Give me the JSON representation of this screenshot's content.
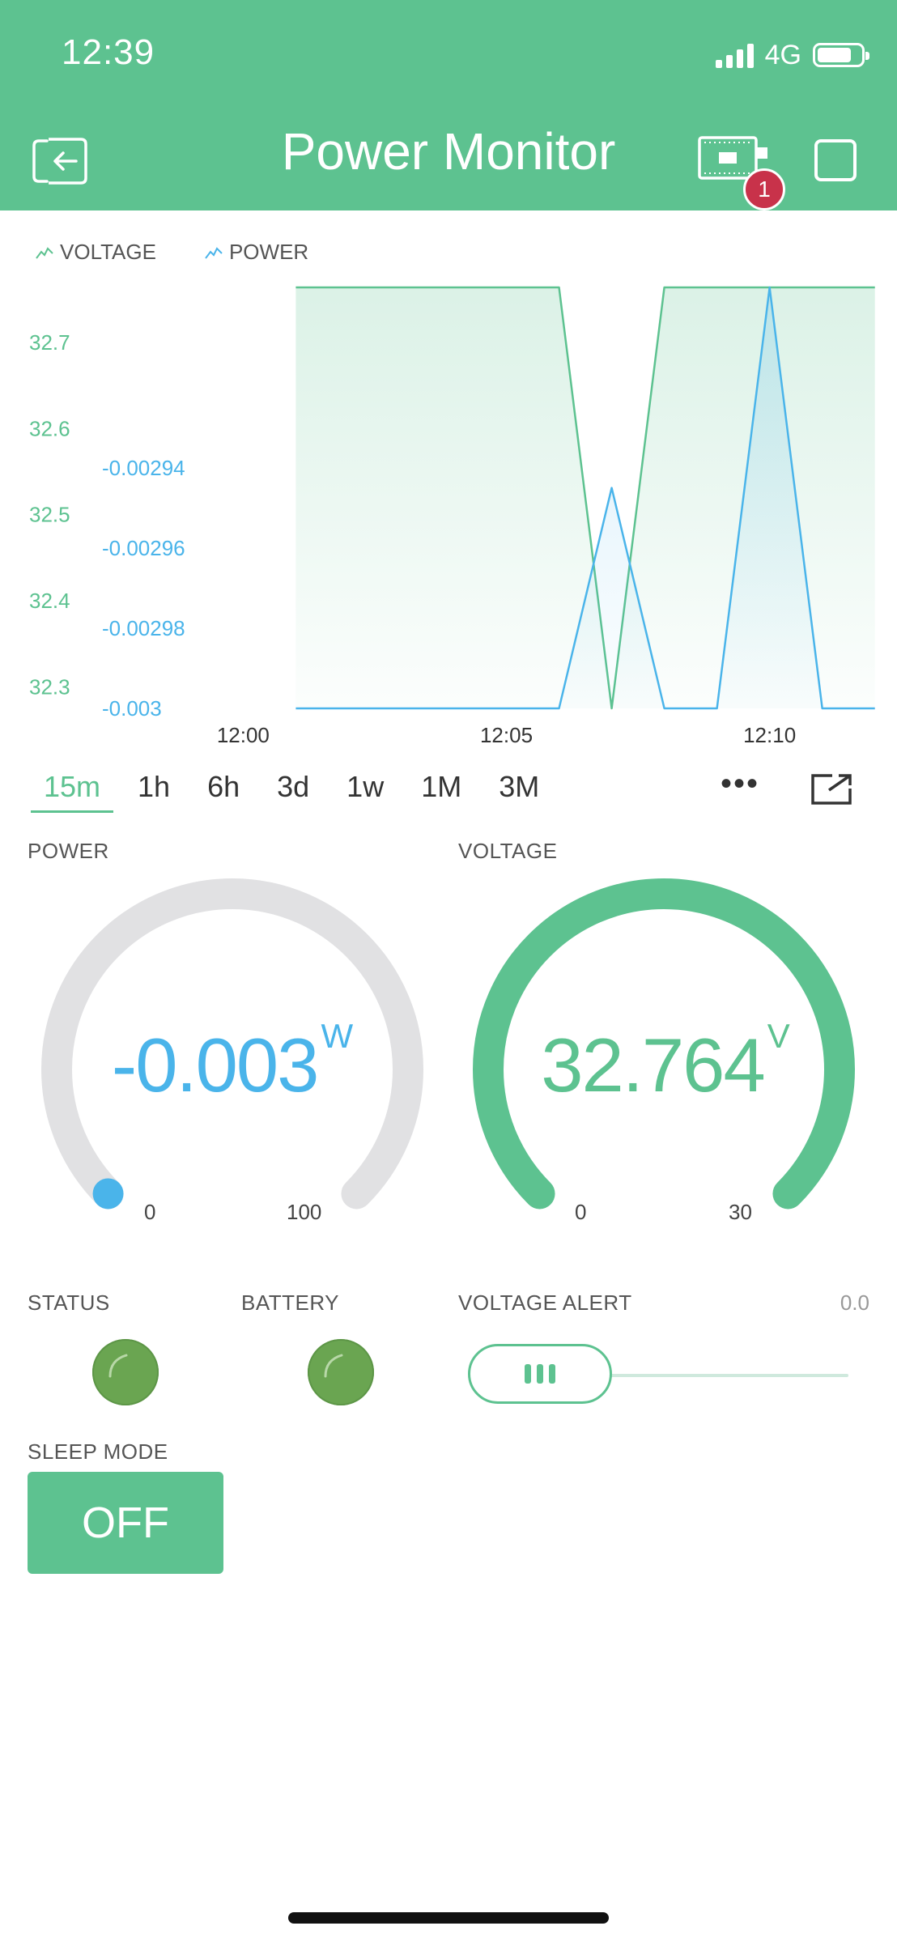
{
  "status_bar": {
    "time": "12:39",
    "network": "4G"
  },
  "header": {
    "title": "Power Monitor",
    "device_badge": "1"
  },
  "chart_data": {
    "type": "line",
    "legend": [
      "VOLTAGE",
      "POWER"
    ],
    "x_ticks": [
      "12:00",
      "12:05",
      "12:10"
    ],
    "y_left_ticks": [
      "32.7",
      "32.6",
      "32.5",
      "32.4",
      "32.3"
    ],
    "y_right_ticks": [
      "-0.00294",
      "-0.00296",
      "-0.00298",
      "-0.003"
    ],
    "series": [
      {
        "name": "VOLTAGE",
        "color": "#5dc290",
        "axis": "left",
        "ylim": [
          32.275,
          32.764
        ],
        "points": [
          [
            1,
            32.764
          ],
          [
            6,
            32.764
          ],
          [
            7,
            32.275
          ],
          [
            8,
            32.764
          ],
          [
            12,
            32.764
          ]
        ]
      },
      {
        "name": "POWER",
        "color": "#4ab4ea",
        "axis": "right",
        "ylim": [
          -0.003,
          -0.002895
        ],
        "points": [
          [
            1,
            -0.003
          ],
          [
            6,
            -0.003
          ],
          [
            7,
            -0.002945
          ],
          [
            8,
            -0.003
          ],
          [
            9,
            -0.003
          ],
          [
            10,
            -0.002895
          ],
          [
            11,
            -0.003
          ],
          [
            12,
            -0.003
          ]
        ]
      }
    ],
    "xlim": [
      -0.99,
      12.02
    ],
    "grid": false
  },
  "ranges": [
    "15m",
    "1h",
    "6h",
    "3d",
    "1w",
    "1M",
    "3M"
  ],
  "active_range": "15m",
  "power_gauge": {
    "label": "POWER",
    "value": "-0.003",
    "unit": "W",
    "min": "0",
    "max": "100",
    "color": "#4ab4ea"
  },
  "voltage_gauge": {
    "label": "VOLTAGE",
    "value": "32.764",
    "unit": "V",
    "min": "0",
    "max": "30",
    "color": "#5dc290"
  },
  "status_led": {
    "label": "STATUS"
  },
  "battery_led": {
    "label": "BATTERY"
  },
  "voltage_alert": {
    "label": "VOLTAGE ALERT",
    "value": "0.0"
  },
  "sleep_mode": {
    "label": "SLEEP MODE",
    "button": "OFF"
  }
}
